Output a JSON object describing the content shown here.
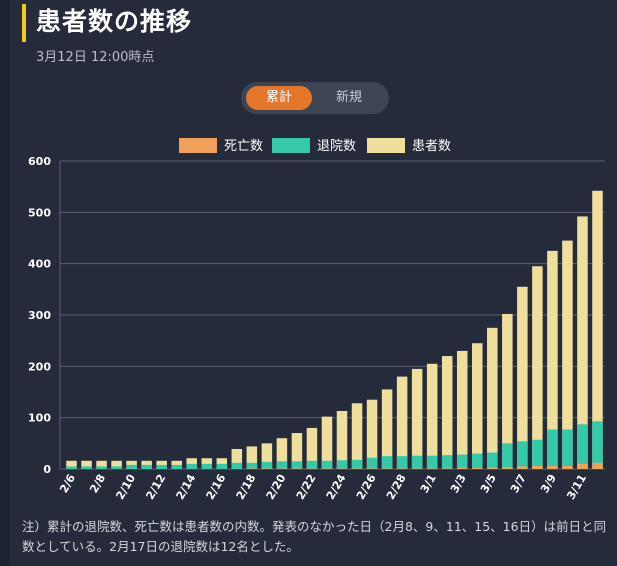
{
  "header": {
    "title": "患者数の推移",
    "timestamp": "3月12日 12:00時点"
  },
  "toggle": {
    "options": [
      "累計",
      "新規"
    ],
    "selected": "累計"
  },
  "colors": {
    "deaths": "#f0a058",
    "discharged": "#33c9a9",
    "patients": "#f0de9c",
    "accent": "#e5772b",
    "title_marker": "#f2cc1d"
  },
  "chart_data": {
    "type": "bar",
    "stacked": "overlay",
    "legend": [
      "死亡数",
      "退院数",
      "患者数"
    ],
    "legend_position": "top-center",
    "grid": true,
    "ylim": [
      0,
      600
    ],
    "y_ticks": [
      0,
      100,
      200,
      300,
      400,
      500,
      600
    ],
    "x_tick_labels": [
      "2/6",
      "2/8",
      "2/10",
      "2/12",
      "2/14",
      "2/16",
      "2/18",
      "2/20",
      "2/22",
      "2/24",
      "2/26",
      "2/28",
      "3/1",
      "3/3",
      "3/5",
      "3/7",
      "3/9",
      "3/11"
    ],
    "categories": [
      "2/6",
      "2/7",
      "2/8",
      "2/9",
      "2/10",
      "2/11",
      "2/12",
      "2/13",
      "2/14",
      "2/15",
      "2/16",
      "2/17",
      "2/18",
      "2/19",
      "2/20",
      "2/21",
      "2/22",
      "2/23",
      "2/24",
      "2/25",
      "2/26",
      "2/27",
      "2/28",
      "2/29",
      "3/1",
      "3/2",
      "3/3",
      "3/4",
      "3/5",
      "3/6",
      "3/7",
      "3/8",
      "3/9",
      "3/10",
      "3/11",
      "3/12"
    ],
    "series": [
      {
        "name": "患者数",
        "values": [
          16,
          16,
          16,
          16,
          16,
          16,
          16,
          16,
          21,
          21,
          21,
          39,
          44,
          50,
          60,
          70,
          80,
          102,
          113,
          128,
          135,
          155,
          180,
          195,
          205,
          220,
          230,
          245,
          275,
          302,
          355,
          395,
          425,
          445,
          492,
          542
        ]
      },
      {
        "name": "退院数",
        "values": [
          5,
          5,
          5,
          5,
          8,
          8,
          8,
          8,
          10,
          10,
          10,
          12,
          12,
          14,
          15,
          15,
          16,
          16,
          17,
          18,
          22,
          25,
          25,
          26,
          26,
          27,
          28,
          30,
          32,
          50,
          54,
          57,
          77,
          77,
          87,
          93
        ]
      },
      {
        "name": "死亡数",
        "values": [
          0,
          0,
          0,
          0,
          0,
          0,
          0,
          0,
          0,
          0,
          0,
          0,
          1,
          1,
          1,
          1,
          1,
          1,
          1,
          1,
          1,
          1,
          1,
          1,
          1,
          1,
          2,
          2,
          3,
          4,
          5,
          6,
          6,
          6,
          10,
          12
        ]
      }
    ]
  },
  "footnote": "注）累計の退院数、死亡数は患者数の内数。発表のなかった日（2月8、9、11、15、16日）は前日と同数としている。2月17日の退院数は12名とした。"
}
